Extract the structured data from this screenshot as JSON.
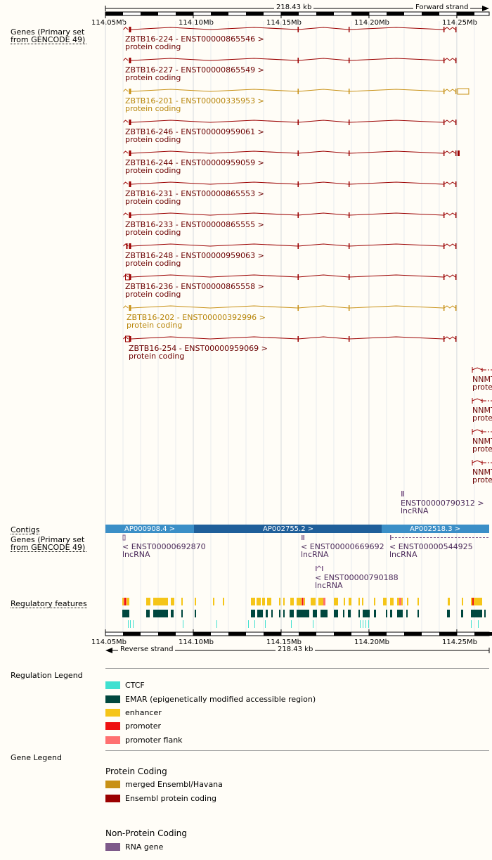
{
  "top_scale": {
    "span_label": "218.43 kb",
    "strand_label": "Forward strand",
    "ticks": [
      {
        "pos": 114.05,
        "label": "114.05Mb"
      },
      {
        "pos": 114.1,
        "label": "114.10Mb"
      },
      {
        "pos": 114.15,
        "label": "114.15Mb"
      },
      {
        "pos": 114.2,
        "label": "114.20Mb"
      },
      {
        "pos": 114.25,
        "label": "114.25Mb"
      }
    ]
  },
  "bottom_scale": {
    "span_label": "218.43 kb",
    "strand_label": "Reverse strand",
    "ticks": [
      {
        "pos": 114.05,
        "label": "114.05Mb"
      },
      {
        "pos": 114.1,
        "label": "114.10Mb"
      },
      {
        "pos": 114.15,
        "label": "114.15Mb"
      },
      {
        "pos": 114.2,
        "label": "114.20Mb"
      },
      {
        "pos": 114.25,
        "label": "114.25Mb"
      }
    ]
  },
  "tracks": {
    "genes_forward_label": "Genes (Primary set from GENCODE 49)",
    "contigs_label": "Contigs",
    "genes_reverse_label": "Genes (Primary set from GENCODE 49)",
    "regulatory_label": "Regulatory features"
  },
  "colors": {
    "ensembl_protein": "#9b0000",
    "merged": "#c89116",
    "rna_gene": "#7e5a8a",
    "label_protein": "#6b0000",
    "label_merged": "#b8860b",
    "label_rna": "#4b2a5a",
    "contig_dark": "#1f5f9a",
    "contig_light": "#3b8fc7",
    "ctcf": "#40e0d0",
    "emar": "#00473e",
    "enhancer": "#f5c518",
    "promoter": "#ee1111",
    "promoter_flank": "#ff7070"
  },
  "forward_transcripts": [
    {
      "name": "ZBTB16-224 - ENST00000865546 >",
      "biotype": "protein coding",
      "type": "protein"
    },
    {
      "name": "ZBTB16-227 - ENST00000865549 >",
      "biotype": "protein coding",
      "type": "protein"
    },
    {
      "name": "ZBTB16-201 - ENST00000335953 >",
      "biotype": "protein coding",
      "type": "merged"
    },
    {
      "name": "ZBTB16-246 - ENST00000959061 >",
      "biotype": "protein coding",
      "type": "protein"
    },
    {
      "name": "ZBTB16-244 - ENST00000959059 >",
      "biotype": "protein coding",
      "type": "protein"
    },
    {
      "name": "ZBTB16-231 - ENST00000865553 >",
      "biotype": "protein coding",
      "type": "protein"
    },
    {
      "name": "ZBTB16-233 - ENST00000865555 >",
      "biotype": "protein coding",
      "type": "protein"
    },
    {
      "name": "ZBTB16-248 - ENST00000959063 >",
      "biotype": "protein coding",
      "type": "protein"
    },
    {
      "name": "ZBTB16-236 - ENST00000865558 >",
      "biotype": "protein coding",
      "type": "protein"
    },
    {
      "name": "ZBTB16-202 - ENST00000392996 >",
      "biotype": "protein coding",
      "type": "merged"
    },
    {
      "name": "ZBTB16-254 - ENST00000959069 >",
      "biotype": "protein coding",
      "type": "protein"
    }
  ],
  "nnmt_transcripts": [
    {
      "name": "NNMT",
      "biotype": "prote"
    },
    {
      "name": "NNMT",
      "biotype": "prote"
    },
    {
      "name": "NNMT",
      "biotype": "prote"
    },
    {
      "name": "NNMT",
      "biotype": "prote"
    }
  ],
  "forward_lnc": {
    "name": "ENST00000790312 >",
    "biotype": "lncRNA"
  },
  "contigs": [
    {
      "name": "AP000908.4 >"
    },
    {
      "name": "AP002755.2 >"
    },
    {
      "name": "AP002518.3 >"
    }
  ],
  "reverse_genes": [
    {
      "name": "< ENST00000692870",
      "biotype": "lncRNA"
    },
    {
      "name": "< ENST00000669692",
      "biotype": "lncRNA"
    },
    {
      "name": "< ENST00000544925",
      "biotype": "lncRNA"
    },
    {
      "name": "< ENST00000790188",
      "biotype": "lncRNA"
    }
  ],
  "regulation_legend": {
    "title": "Regulation Legend",
    "items": [
      {
        "label": "CTCF",
        "color": "#40e0d0"
      },
      {
        "label": "EMAR (epigenetically modified accessible region)",
        "color": "#00473e"
      },
      {
        "label": "enhancer",
        "color": "#f5c518"
      },
      {
        "label": "promoter",
        "color": "#ee1111"
      },
      {
        "label": "promoter flank",
        "color": "#ff7070"
      }
    ]
  },
  "gene_legend": {
    "title": "Gene Legend",
    "protein_heading": "Protein Coding",
    "protein_items": [
      {
        "label": "merged Ensembl/Havana",
        "color": "#c89116"
      },
      {
        "label": "Ensembl protein coding",
        "color": "#9b0000"
      }
    ],
    "noncoding_heading": "Non-Protein Coding",
    "noncoding_items": [
      {
        "label": "RNA gene",
        "color": "#7e5a8a"
      }
    ]
  }
}
